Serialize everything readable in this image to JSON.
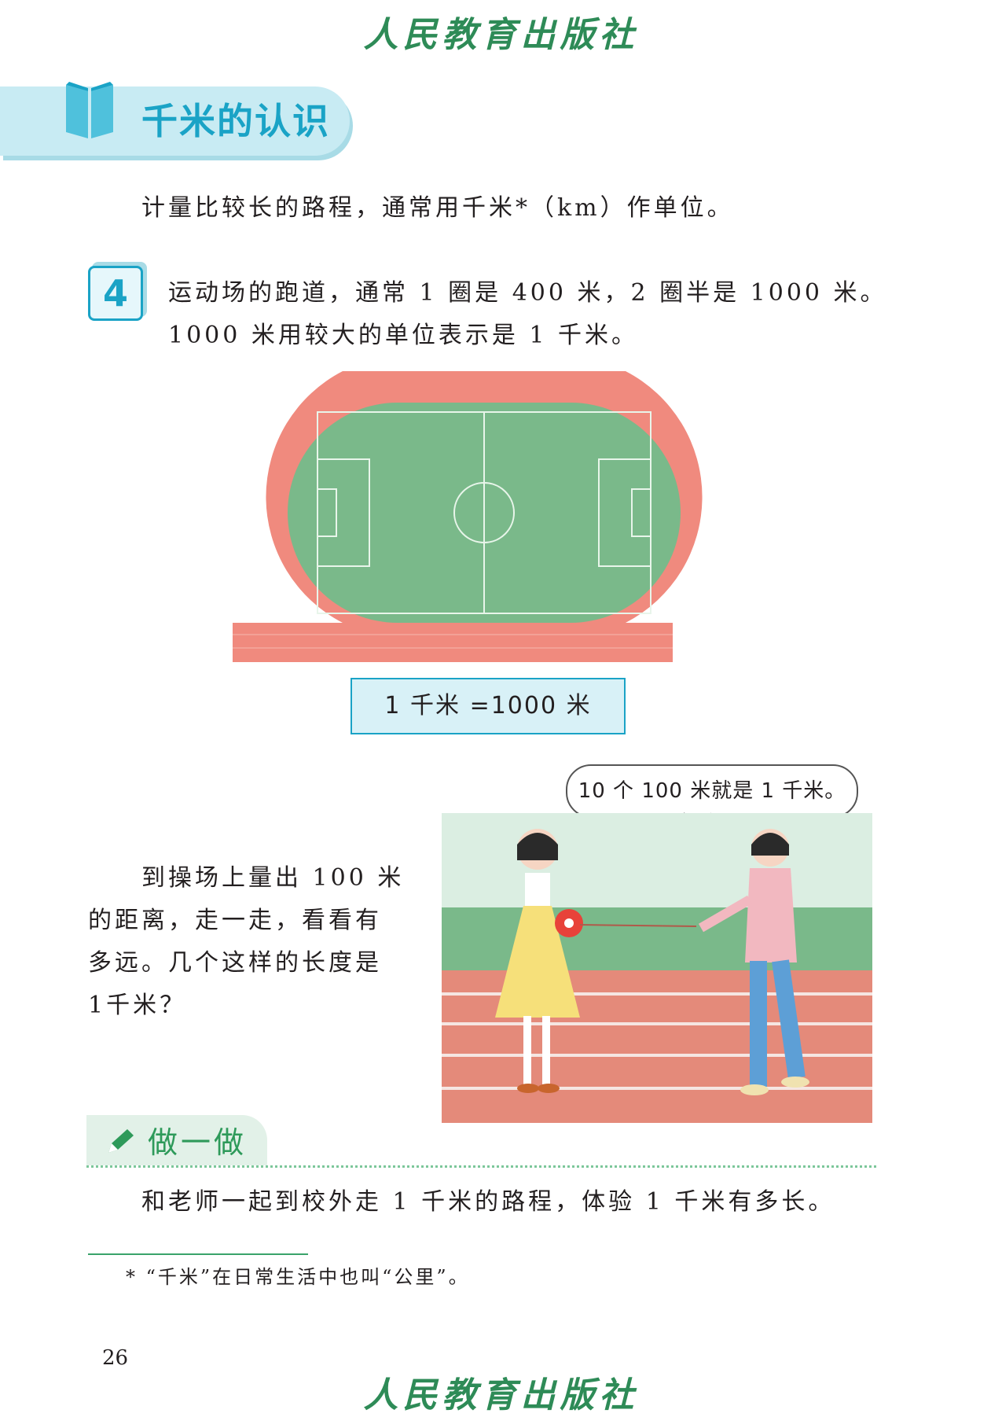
{
  "publisher": "人民教育出版社",
  "section_title": "千米的认识",
  "intro_text": "计量比较长的路程，通常用千米*（km）作单位。",
  "example": {
    "number": "4",
    "line1": "运动场的跑道，通常 1 圈是 400 米，2 圈半是 1000 米。",
    "line2": "1000 米用较大的单位表示是 1 千米。"
  },
  "equation": "1 千米 =1000 米",
  "speech_bubble": "10 个 100 米就是 1 千米。",
  "activity": {
    "line1": "到操场上量出 100 米",
    "line2": "的距离，走一走，看看有",
    "line3": "多远。几个这样的长度是",
    "line4": "1千米？"
  },
  "do_it": {
    "label": "做一做",
    "text": "和老师一起到校外走 1 千米的路程，体验 1 千米有多长。"
  },
  "footnote": "* “千米”在日常生活中也叫“公里”。",
  "page_number": "26",
  "colors": {
    "accent_blue": "#1aa3c6",
    "banner_bg": "#c8ebf3",
    "track_red": "#f08a7e",
    "field_green": "#7ab98a",
    "publisher_green": "#2e8b57"
  }
}
